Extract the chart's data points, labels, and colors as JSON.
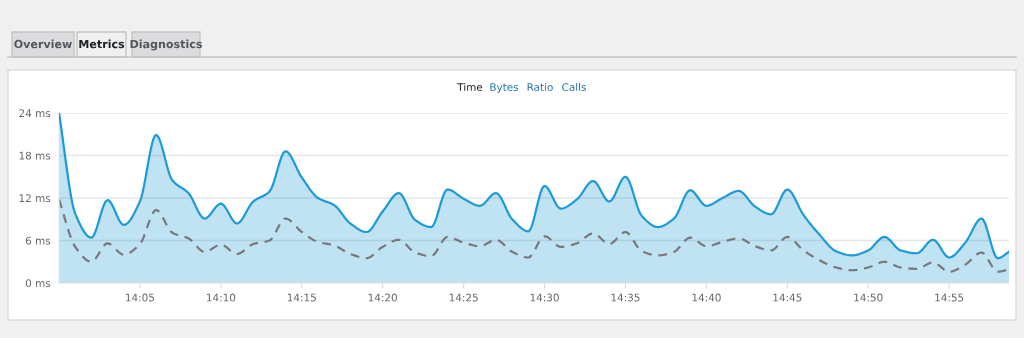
{
  "chart_data": {
    "type": "area",
    "annotations": [
      "Overview",
      "Metrics",
      "Diagnostics",
      "Time",
      "Bytes",
      "Ratio",
      "Calls"
    ],
    "x": [
      14.0,
      14.0167,
      14.0333,
      14.05,
      14.0667,
      14.0833,
      14.1,
      14.1167,
      14.1333,
      14.15,
      14.1667,
      14.1833,
      14.2,
      14.2167,
      14.2333,
      14.25,
      14.2667,
      14.2833,
      14.3,
      14.3167,
      14.3333,
      14.35,
      14.3667,
      14.3833,
      14.4,
      14.4167,
      14.4333,
      14.45,
      14.4667,
      14.4833,
      14.5,
      14.5167,
      14.5333,
      14.55,
      14.5667,
      14.5833,
      14.6,
      14.6167,
      14.6333,
      14.65,
      14.6667,
      14.6833,
      14.7,
      14.7167,
      14.7333,
      14.75,
      14.7667,
      14.7833,
      14.8,
      14.8167,
      14.8333,
      14.85,
      14.8667,
      14.8833,
      14.9,
      14.9167,
      14.9333,
      14.95,
      14.9667,
      14.9783
    ],
    "series": [
      {
        "color": "#1e9bd7",
        "values": [
          24,
          9.8,
          6.4,
          11.7,
          8.2,
          11.5,
          20.9,
          14.5,
          12.7,
          9.1,
          11.2,
          8.4,
          11.5,
          12.9,
          18.6,
          14.9,
          12.0,
          11.0,
          8.4,
          7.2,
          10.1,
          12.7,
          8.9,
          7.9,
          13.2,
          11.9,
          10.9,
          12.7,
          9.0,
          7.3,
          13.7,
          10.5,
          11.8,
          14.4,
          11.5,
          15.0,
          9.5,
          7.9,
          9.1,
          13.1,
          10.9,
          12.0,
          13.0,
          10.8,
          9.7,
          13.2,
          9.6,
          6.8,
          4.5,
          3.9,
          4.6,
          6.5,
          4.6,
          4.2,
          6.1,
          3.6,
          5.7,
          9.1,
          3.5,
          4.4
        ]
      },
      {
        "type": "line",
        "line_style": "dashed",
        "color": "#77797c",
        "values": [
          11.8,
          5.1,
          3.0,
          5.6,
          4.0,
          5.5,
          10.3,
          7.1,
          6.3,
          4.4,
          5.4,
          4.1,
          5.5,
          6.0,
          9.1,
          7.2,
          5.8,
          5.3,
          4.1,
          3.5,
          5.1,
          6.1,
          4.3,
          3.8,
          6.5,
          5.7,
          5.2,
          6.1,
          4.4,
          3.6,
          6.6,
          5.1,
          5.6,
          7.0,
          5.5,
          7.2,
          4.5,
          3.9,
          4.4,
          6.4,
          5.2,
          5.8,
          6.3,
          5.2,
          4.6,
          6.5,
          4.6,
          3.2,
          2.2,
          1.8,
          2.2,
          3.0,
          2.2,
          2.0,
          2.9,
          1.6,
          2.6,
          4.3,
          1.6,
          1.9
        ]
      }
    ],
    "xlim": [
      14.0,
      14.9783
    ],
    "xticks": [
      {
        "value": 14.0833,
        "label": "14:05"
      },
      {
        "value": 14.1667,
        "label": "14:10"
      },
      {
        "value": 14.25,
        "label": "14:15"
      },
      {
        "value": 14.3333,
        "label": "14:20"
      },
      {
        "value": 14.4167,
        "label": "14:25"
      },
      {
        "value": 14.5,
        "label": "14:30"
      },
      {
        "value": 14.5833,
        "label": "14:35"
      },
      {
        "value": 14.6667,
        "label": "14:40"
      },
      {
        "value": 14.75,
        "label": "14:45"
      },
      {
        "value": 14.8333,
        "label": "14:50"
      },
      {
        "value": 14.9167,
        "label": "14:55"
      }
    ],
    "ylim": [
      0,
      24
    ],
    "yticks": [
      {
        "value": 0,
        "label": "0 ms"
      },
      {
        "value": 6,
        "label": "6 ms"
      },
      {
        "value": 12,
        "label": "12 ms"
      },
      {
        "value": 18,
        "label": "18 ms"
      },
      {
        "value": 24,
        "label": "24 ms"
      }
    ],
    "grid": "y"
  }
}
